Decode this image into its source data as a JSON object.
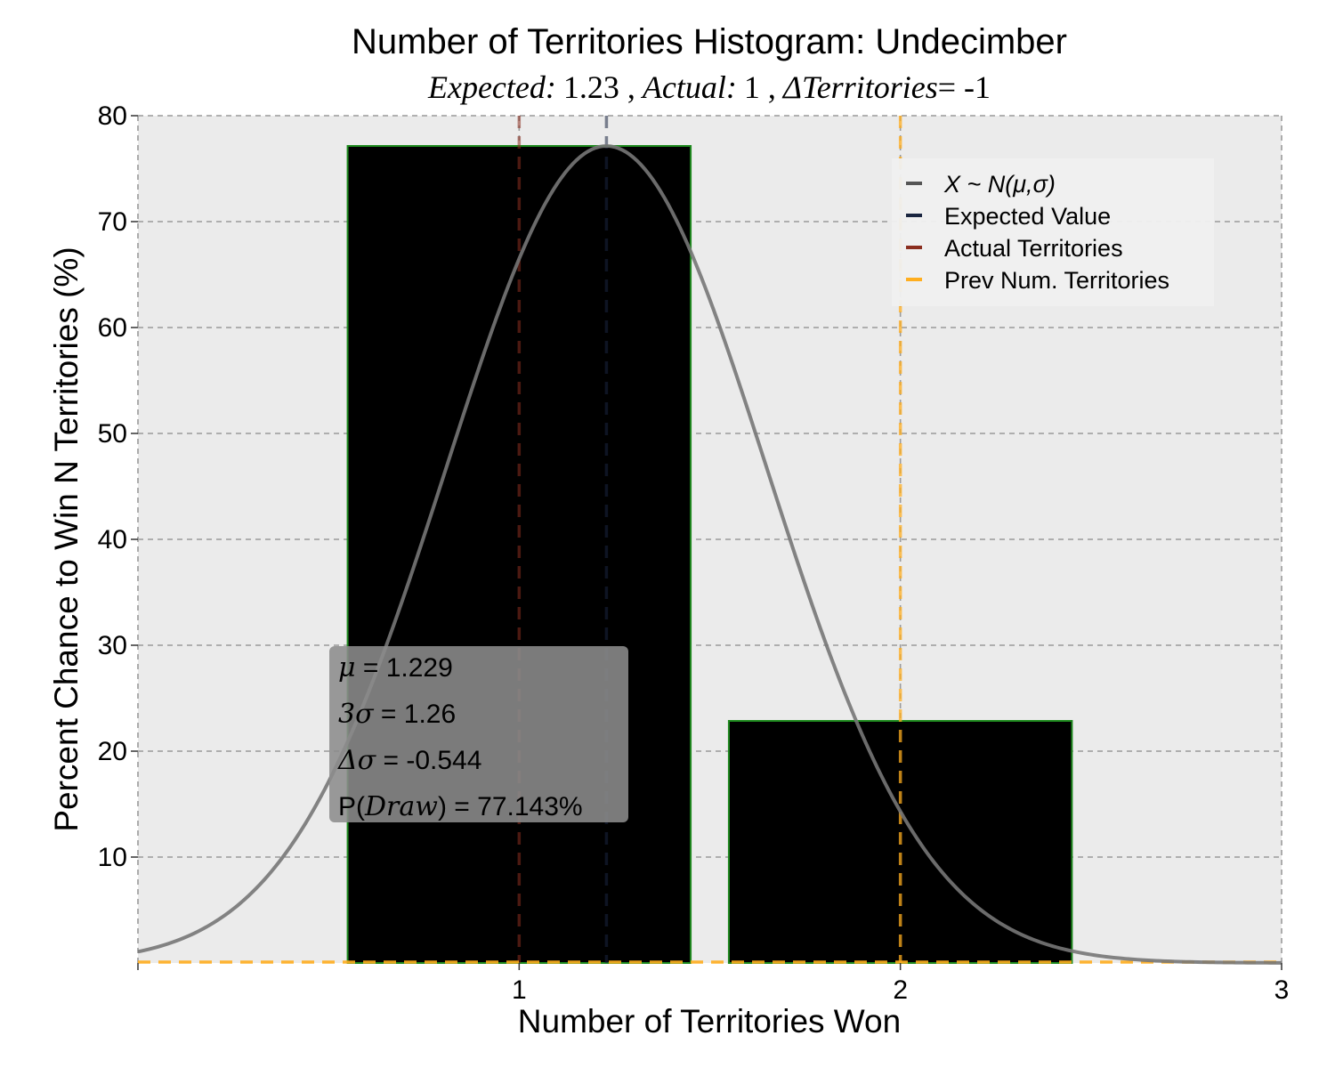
{
  "chart_data": {
    "type": "bar",
    "title": "Number of Territories Histogram: Undecimber",
    "subtitle": {
      "expected_label": "Expected:",
      "expected_value": "1.23 ,",
      "actual_label": "Actual:",
      "actual_value": "1 ,",
      "delta_label": "ΔTerritories",
      "delta_value": "= -1"
    },
    "xlabel": "Number of Territories Won",
    "ylabel": "Percent Chance to Win N Territories (%)",
    "xlim": [
      0,
      3
    ],
    "ylim": [
      0,
      80
    ],
    "x_ticks": [
      1,
      2,
      3
    ],
    "x_tick_labels": [
      "1",
      "2",
      "3"
    ],
    "y_ticks": [
      10,
      20,
      30,
      40,
      50,
      60,
      70,
      80
    ],
    "y_tick_labels": [
      "10",
      "20",
      "30",
      "40",
      "50",
      "60",
      "70",
      "80"
    ],
    "grid": true,
    "bins": [
      {
        "x": 1,
        "value": 77.143
      },
      {
        "x": 2,
        "value": 22.857
      }
    ],
    "bar_width": 0.9,
    "normal_curve": {
      "mu": 1.229,
      "sigma": 0.42,
      "peak": 77.143
    },
    "expected_value": 1.229,
    "actual_territories": 1,
    "prev_num_territories": 2,
    "legend": {
      "position": "top-right",
      "entries": [
        {
          "label": "X ~ N(μ,σ)",
          "color": "#555555"
        },
        {
          "label": "Expected Value",
          "color": "#1a2540"
        },
        {
          "label": "Actual Territories",
          "color": "#8b2e1f"
        },
        {
          "label": "Prev Num. Territories",
          "color": "#ffae1f"
        }
      ]
    },
    "stats_box": {
      "lines": [
        {
          "symbol": "μ",
          "text": " = 1.229"
        },
        {
          "symbol": "3σ",
          "text": " = 1.26"
        },
        {
          "symbol": "Δσ",
          "text": " = -0.544"
        },
        {
          "prefix": "P(",
          "symbol": "Draw",
          "text": ") = 77.143%"
        }
      ]
    },
    "colors": {
      "plot_background": "#ebebeb",
      "bar_fill": "#000000",
      "bar_edge": "#1e8a1e",
      "curve": "#555555",
      "expected": "#1a2540",
      "actual": "#8b2e1f",
      "prev": "#ffae1f"
    }
  }
}
